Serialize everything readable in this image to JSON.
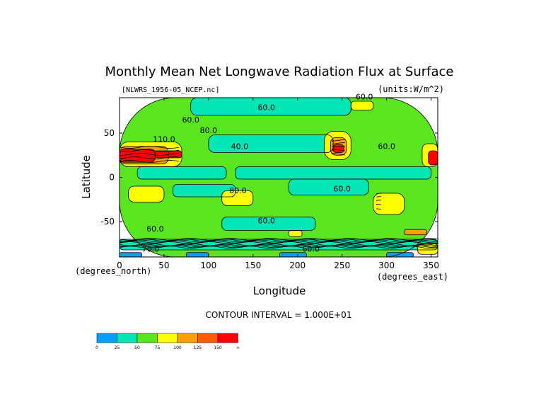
{
  "chart_data": {
    "type": "heatmap",
    "title": "Monthly Mean Net Longwave Radiation Flux at Surface",
    "file_label": "[NLWRS_1956-05_NCEP.nc]",
    "units_label": "(units:W/m^2)",
    "xlabel": "Longitude",
    "ylabel": "Latitude",
    "x_unit_label": "(degrees_east)",
    "y_unit_label": "(degrees_north)",
    "xlim": [
      0,
      357.5
    ],
    "ylim": [
      -90,
      90
    ],
    "x_ticks": [
      0,
      50,
      100,
      150,
      200,
      250,
      300,
      350
    ],
    "y_ticks": [
      -50,
      0,
      50
    ],
    "contour_interval_label": "CONTOUR INTERVAL = 1.000E+01",
    "contour_labels": [
      {
        "text": "60.0",
        "lon": 275,
        "lat": 88
      },
      {
        "text": "60.0",
        "lon": 165,
        "lat": 76
      },
      {
        "text": "60.0",
        "lon": 80,
        "lat": 62
      },
      {
        "text": "80.0",
        "lon": 100,
        "lat": 50
      },
      {
        "text": "110.0",
        "lon": 50,
        "lat": 40
      },
      {
        "text": "40.0",
        "lon": 135,
        "lat": 32
      },
      {
        "text": "60.0",
        "lon": 300,
        "lat": 32
      },
      {
        "text": "60.0",
        "lon": 250,
        "lat": -16
      },
      {
        "text": "80.0",
        "lon": 133,
        "lat": -18
      },
      {
        "text": "60.0",
        "lon": 165,
        "lat": -52
      },
      {
        "text": "60.0",
        "lon": 40,
        "lat": -61
      },
      {
        "text": "70.0",
        "lon": 35,
        "lat": -84
      },
      {
        "text": "60.0",
        "lon": 215,
        "lat": -84
      }
    ],
    "legend": {
      "colors": [
        "#00a0ff",
        "#00e6b4",
        "#5ae61e",
        "#ffff00",
        "#ffa000",
        "#ff5a00",
        "#ff0000"
      ],
      "labels": [
        "0",
        "25",
        "50",
        "75",
        "100",
        "125",
        "150",
        "∞"
      ]
    },
    "regions": [
      {
        "level": 2,
        "lon0": 0,
        "lon1": 357.5,
        "lat0": -90,
        "lat1": 90
      },
      {
        "level": 1,
        "lon0": 100,
        "lon1": 240,
        "lat0": 28,
        "lat1": 48
      },
      {
        "level": 1,
        "lon0": 20,
        "lon1": 120,
        "lat0": -2,
        "lat1": 12
      },
      {
        "level": 1,
        "lon0": 130,
        "lon1": 350,
        "lat0": -2,
        "lat1": 12
      },
      {
        "level": 1,
        "lon0": 190,
        "lon1": 280,
        "lat0": -20,
        "lat1": -2
      },
      {
        "level": 1,
        "lon0": 60,
        "lon1": 130,
        "lat0": -22,
        "lat1": -8
      },
      {
        "level": 1,
        "lon0": 115,
        "lon1": 220,
        "lat0": -60,
        "lat1": -45
      },
      {
        "level": 1,
        "lon0": 0,
        "lon1": 357.5,
        "lat0": -82,
        "lat1": -70
      },
      {
        "level": 1,
        "lon0": 80,
        "lon1": 260,
        "lat0": 70,
        "lat1": 90
      },
      {
        "level": 3,
        "lon0": 0,
        "lon1": 70,
        "lat0": 12,
        "lat1": 40
      },
      {
        "level": 4,
        "lon0": 0,
        "lon1": 55,
        "lat0": 15,
        "lat1": 35
      },
      {
        "level": 6,
        "lon0": 0,
        "lon1": 40,
        "lat0": 17,
        "lat1": 32
      },
      {
        "level": 6,
        "lon0": 40,
        "lon1": 70,
        "lat0": 22,
        "lat1": 30
      },
      {
        "level": 3,
        "lon0": 230,
        "lon1": 260,
        "lat0": 20,
        "lat1": 52
      },
      {
        "level": 4,
        "lon0": 237,
        "lon1": 255,
        "lat0": 25,
        "lat1": 45
      },
      {
        "level": 6,
        "lon0": 240,
        "lon1": 252,
        "lat0": 28,
        "lat1": 37
      },
      {
        "level": 3,
        "lon0": 340,
        "lon1": 357.5,
        "lat0": 12,
        "lat1": 38
      },
      {
        "level": 6,
        "lon0": 347,
        "lon1": 357.5,
        "lat0": 14,
        "lat1": 30
      },
      {
        "level": 3,
        "lon0": 10,
        "lon1": 50,
        "lat0": -28,
        "lat1": -10
      },
      {
        "level": 3,
        "lon0": 115,
        "lon1": 150,
        "lat0": -32,
        "lat1": -15
      },
      {
        "level": 3,
        "lon0": 285,
        "lon1": 320,
        "lat0": -42,
        "lat1": -18
      },
      {
        "level": 3,
        "lon0": 260,
        "lon1": 285,
        "lat0": 76,
        "lat1": 86
      },
      {
        "level": 3,
        "lon0": 190,
        "lon1": 205,
        "lat0": -67,
        "lat1": -60
      },
      {
        "level": 3,
        "lon0": 335,
        "lon1": 357.5,
        "lat0": -87,
        "lat1": -75
      },
      {
        "level": 4,
        "lon0": 320,
        "lon1": 345,
        "lat0": -65,
        "lat1": -59
      },
      {
        "level": 0,
        "lon0": 0,
        "lon1": 25,
        "lat0": -90,
        "lat1": -85
      },
      {
        "level": 0,
        "lon0": 75,
        "lon1": 100,
        "lat0": -90,
        "lat1": -85
      },
      {
        "level": 0,
        "lon0": 180,
        "lon1": 210,
        "lat0": -90,
        "lat1": -85
      },
      {
        "level": 0,
        "lon0": 300,
        "lon1": 330,
        "lat0": -90,
        "lat1": -85
      }
    ],
    "dense_contour_bands": [
      {
        "lon0": 0,
        "lon1": 357.5,
        "lat0": -74,
        "lat1": -70
      },
      {
        "lon0": 0,
        "lon1": 357.5,
        "lat0": -79,
        "lat1": -76
      },
      {
        "lon0": 0,
        "lon1": 70,
        "lat0": 18,
        "lat1": 34
      },
      {
        "lon0": 239,
        "lon1": 254,
        "lat0": 26,
        "lat1": 42
      },
      {
        "lon0": 289,
        "lon1": 297,
        "lat0": -36,
        "lat1": -18
      }
    ]
  }
}
